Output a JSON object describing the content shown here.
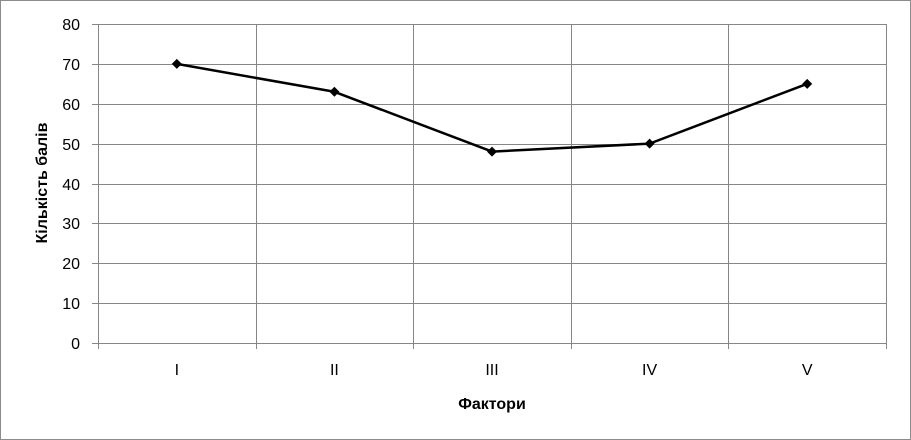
{
  "chart_data": {
    "type": "line",
    "title": "",
    "xlabel": "Фактори",
    "ylabel": "Кількість балів",
    "categories": [
      "I",
      "II",
      "III",
      "IV",
      "V"
    ],
    "series": [
      {
        "values": [
          70,
          63,
          48,
          50,
          65
        ]
      }
    ],
    "ylim": [
      0,
      80
    ],
    "yticks": [
      "0",
      "10",
      "20",
      "30",
      "40",
      "50",
      "60",
      "70",
      "80"
    ],
    "grid": true,
    "legend": "none",
    "marker": "diamond",
    "colors": {
      "line": "#000000",
      "grid": "#868686",
      "axis": "#868686"
    }
  }
}
